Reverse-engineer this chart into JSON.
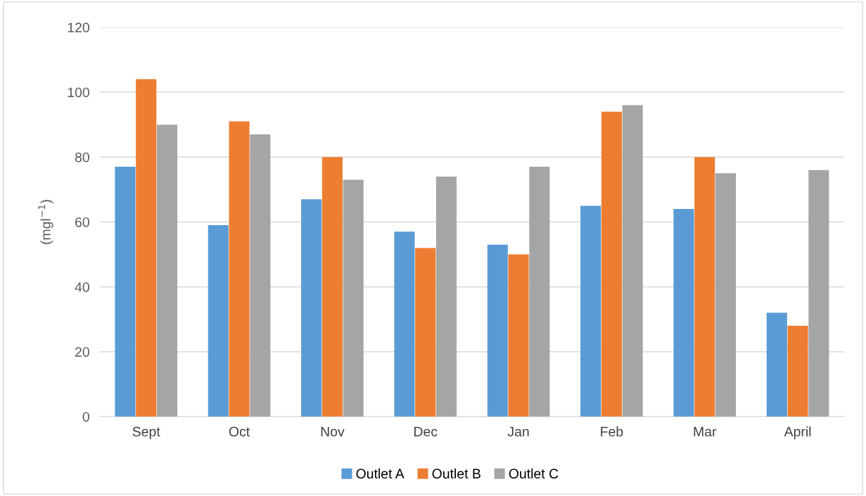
{
  "chart_data": {
    "type": "bar",
    "ylabel": "(mgl$^{−1}$)",
    "categories": [
      "Sept",
      "Oct",
      "Nov",
      "Dec",
      "Jan",
      "Feb",
      "Mar",
      "April"
    ],
    "series": [
      {
        "name": "Outlet A",
        "color": "#5b9bd5",
        "values": [
          77,
          59,
          67,
          57,
          53,
          65,
          64,
          32
        ]
      },
      {
        "name": "Outlet B",
        "color": "#ed7d31",
        "values": [
          104,
          91,
          80,
          52,
          50,
          94,
          80,
          28
        ]
      },
      {
        "name": "Outlet C",
        "color": "#a5a5a5",
        "values": [
          90,
          87,
          73,
          74,
          77,
          96,
          75,
          76
        ]
      }
    ],
    "ylim": [
      0,
      120
    ],
    "yticks": [
      0,
      20,
      40,
      60,
      80,
      100,
      120
    ],
    "grid": "y",
    "legend": "bottom"
  }
}
